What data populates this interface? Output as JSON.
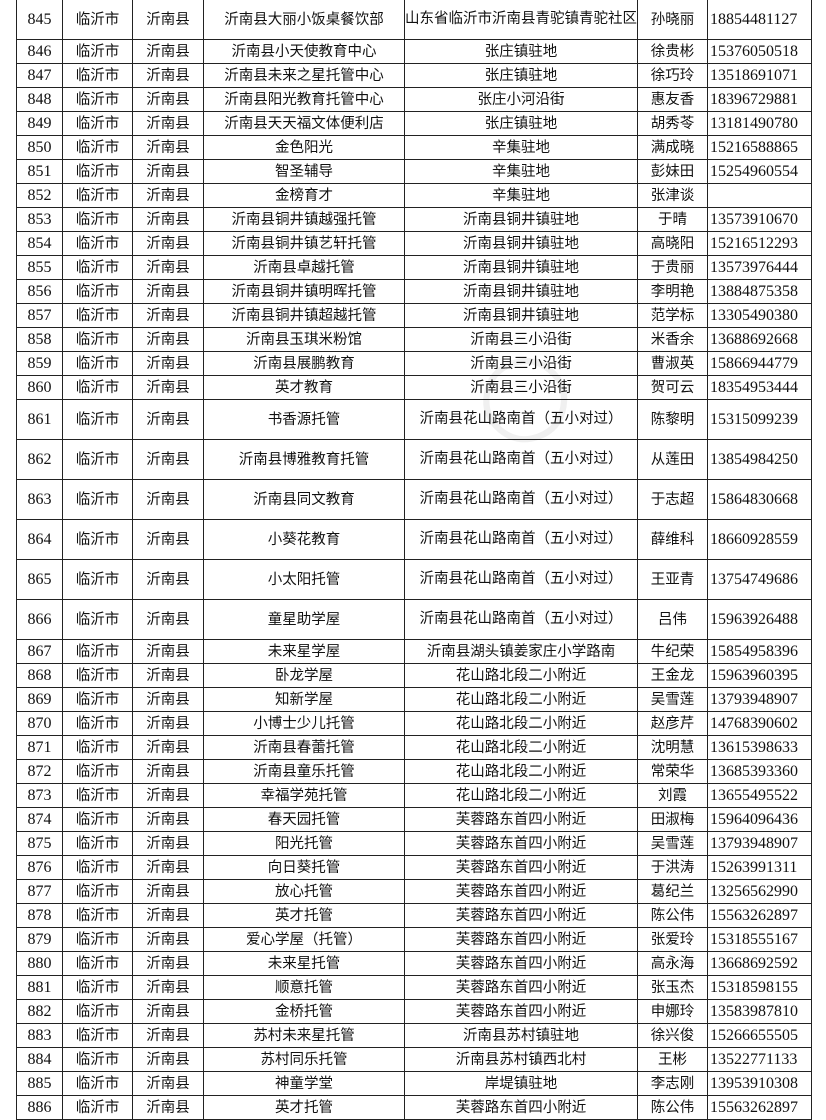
{
  "table": {
    "rows": [
      {
        "no": "845",
        "city": "临沂市",
        "county": "沂南县",
        "name": "沂南县大丽小饭桌餐饮部",
        "address": "山东省临沂市沂南县青驼镇青驼社区",
        "contact": "孙晓丽",
        "phone": "18854481127"
      },
      {
        "no": "846",
        "city": "临沂市",
        "county": "沂南县",
        "name": "沂南县小天使教育中心",
        "address": "张庄镇驻地",
        "contact": "徐贵彬",
        "phone": "15376050518"
      },
      {
        "no": "847",
        "city": "临沂市",
        "county": "沂南县",
        "name": "沂南县未来之星托管中心",
        "address": "张庄镇驻地",
        "contact": "徐巧玲",
        "phone": "13518691071"
      },
      {
        "no": "848",
        "city": "临沂市",
        "county": "沂南县",
        "name": "沂南县阳光教育托管中心",
        "address": "张庄小河沿街",
        "contact": "惠友香",
        "phone": "18396729881"
      },
      {
        "no": "849",
        "city": "临沂市",
        "county": "沂南县",
        "name": "沂南县天天福文体便利店",
        "address": "张庄镇驻地",
        "contact": "胡秀苓",
        "phone": "13181490780"
      },
      {
        "no": "850",
        "city": "临沂市",
        "county": "沂南县",
        "name": "金色阳光",
        "address": "辛集驻地",
        "contact": "满成晓",
        "phone": "15216588865"
      },
      {
        "no": "851",
        "city": "临沂市",
        "county": "沂南县",
        "name": "智圣辅导",
        "address": "辛集驻地",
        "contact": "彭妹田",
        "phone": "15254960554"
      },
      {
        "no": "852",
        "city": "临沂市",
        "county": "沂南县",
        "name": "金榜育才",
        "address": "辛集驻地",
        "contact": "张津谈",
        "phone": ""
      },
      {
        "no": "853",
        "city": "临沂市",
        "county": "沂南县",
        "name": "沂南县铜井镇越强托管",
        "address": "沂南县铜井镇驻地",
        "contact": "于晴",
        "phone": "13573910670"
      },
      {
        "no": "854",
        "city": "临沂市",
        "county": "沂南县",
        "name": "沂南县铜井镇艺轩托管",
        "address": "沂南县铜井镇驻地",
        "contact": "高晓阳",
        "phone": "15216512293"
      },
      {
        "no": "855",
        "city": "临沂市",
        "county": "沂南县",
        "name": "沂南县卓越托管",
        "address": "沂南县铜井镇驻地",
        "contact": "于贵丽",
        "phone": "13573976444"
      },
      {
        "no": "856",
        "city": "临沂市",
        "county": "沂南县",
        "name": "沂南县铜井镇明晖托管",
        "address": "沂南县铜井镇驻地",
        "contact": "李明艳",
        "phone": "13884875358"
      },
      {
        "no": "857",
        "city": "临沂市",
        "county": "沂南县",
        "name": "沂南县铜井镇超越托管",
        "address": "沂南县铜井镇驻地",
        "contact": "范学标",
        "phone": "13305490380"
      },
      {
        "no": "858",
        "city": "临沂市",
        "county": "沂南县",
        "name": "沂南县玉琪米粉馆",
        "address": "沂南县三小沿街",
        "contact": "米香余",
        "phone": "13688692668"
      },
      {
        "no": "859",
        "city": "临沂市",
        "county": "沂南县",
        "name": "沂南县展鹏教育",
        "address": "沂南县三小沿街",
        "contact": "曹淑英",
        "phone": "15866944779"
      },
      {
        "no": "860",
        "city": "临沂市",
        "county": "沂南县",
        "name": "英才教育",
        "address": "沂南县三小沿街",
        "contact": "贺可云",
        "phone": "18354953444"
      },
      {
        "no": "861",
        "city": "临沂市",
        "county": "沂南县",
        "name": "书香源托管",
        "address": "沂南县花山路南首（五小对过）",
        "contact": "陈黎明",
        "phone": "15315099239"
      },
      {
        "no": "862",
        "city": "临沂市",
        "county": "沂南县",
        "name": "沂南县博雅教育托管",
        "address": "沂南县花山路南首（五小对过）",
        "contact": "从莲田",
        "phone": "13854984250"
      },
      {
        "no": "863",
        "city": "临沂市",
        "county": "沂南县",
        "name": "沂南县同文教育",
        "address": "沂南县花山路南首（五小对过）",
        "contact": "于志超",
        "phone": "15864830668"
      },
      {
        "no": "864",
        "city": "临沂市",
        "county": "沂南县",
        "name": "小葵花教育",
        "address": "沂南县花山路南首（五小对过）",
        "contact": "薛维科",
        "phone": "18660928559"
      },
      {
        "no": "865",
        "city": "临沂市",
        "county": "沂南县",
        "name": "小太阳托管",
        "address": "沂南县花山路南首（五小对过）",
        "contact": "王亚青",
        "phone": "13754749686"
      },
      {
        "no": "866",
        "city": "临沂市",
        "county": "沂南县",
        "name": "童星助学屋",
        "address": "沂南县花山路南首（五小对过）",
        "contact": "吕伟",
        "phone": "15963926488"
      },
      {
        "no": "867",
        "city": "临沂市",
        "county": "沂南县",
        "name": "未来星学屋",
        "address": "沂南县湖头镇姜家庄小学路南",
        "contact": "牛纪荣",
        "phone": "15854958396"
      },
      {
        "no": "868",
        "city": "临沂市",
        "county": "沂南县",
        "name": "卧龙学屋",
        "address": "花山路北段二小附近",
        "contact": "王金龙",
        "phone": "15963960395"
      },
      {
        "no": "869",
        "city": "临沂市",
        "county": "沂南县",
        "name": "知新学屋",
        "address": "花山路北段二小附近",
        "contact": "吴雪莲",
        "phone": "13793948907"
      },
      {
        "no": "870",
        "city": "临沂市",
        "county": "沂南县",
        "name": "小博士少儿托管",
        "address": "花山路北段二小附近",
        "contact": "赵彦芹",
        "phone": "14768390602"
      },
      {
        "no": "871",
        "city": "临沂市",
        "county": "沂南县",
        "name": "沂南县春蕾托管",
        "address": "花山路北段二小附近",
        "contact": "沈明慧",
        "phone": "13615398633"
      },
      {
        "no": "872",
        "city": "临沂市",
        "county": "沂南县",
        "name": "沂南县童乐托管",
        "address": "花山路北段二小附近",
        "contact": "常荣华",
        "phone": "13685393360"
      },
      {
        "no": "873",
        "city": "临沂市",
        "county": "沂南县",
        "name": "幸福学苑托管",
        "address": "花山路北段二小附近",
        "contact": "刘霞",
        "phone": "13655495522"
      },
      {
        "no": "874",
        "city": "临沂市",
        "county": "沂南县",
        "name": "春天园托管",
        "address": "芙蓉路东首四小附近",
        "contact": "田淑梅",
        "phone": "15964096436"
      },
      {
        "no": "875",
        "city": "临沂市",
        "county": "沂南县",
        "name": "阳光托管",
        "address": "芙蓉路东首四小附近",
        "contact": "吴雪莲",
        "phone": "13793948907"
      },
      {
        "no": "876",
        "city": "临沂市",
        "county": "沂南县",
        "name": "向日葵托管",
        "address": "芙蓉路东首四小附近",
        "contact": "于洪涛",
        "phone": "15263991311"
      },
      {
        "no": "877",
        "city": "临沂市",
        "county": "沂南县",
        "name": "放心托管",
        "address": "芙蓉路东首四小附近",
        "contact": "葛纪兰",
        "phone": "13256562990"
      },
      {
        "no": "878",
        "city": "临沂市",
        "county": "沂南县",
        "name": "英才托管",
        "address": "芙蓉路东首四小附近",
        "contact": "陈公伟",
        "phone": "15563262897"
      },
      {
        "no": "879",
        "city": "临沂市",
        "county": "沂南县",
        "name": "爱心学屋（托管）",
        "address": "芙蓉路东首四小附近",
        "contact": "张爱玲",
        "phone": "15318555167"
      },
      {
        "no": "880",
        "city": "临沂市",
        "county": "沂南县",
        "name": "未来星托管",
        "address": "芙蓉路东首四小附近",
        "contact": "高永海",
        "phone": "13668692592"
      },
      {
        "no": "881",
        "city": "临沂市",
        "county": "沂南县",
        "name": "顺意托管",
        "address": "芙蓉路东首四小附近",
        "contact": "张玉杰",
        "phone": "15318598155"
      },
      {
        "no": "882",
        "city": "临沂市",
        "county": "沂南县",
        "name": "金桥托管",
        "address": "芙蓉路东首四小附近",
        "contact": "申娜玲",
        "phone": "13583987810"
      },
      {
        "no": "883",
        "city": "临沂市",
        "county": "沂南县",
        "name": "苏村未来星托管",
        "address": "沂南县苏村镇驻地",
        "contact": "徐兴俊",
        "phone": "15266655505"
      },
      {
        "no": "884",
        "city": "临沂市",
        "county": "沂南县",
        "name": "苏村同乐托管",
        "address": "沂南县苏村镇西北村",
        "contact": "王彬",
        "phone": "13522771133"
      },
      {
        "no": "885",
        "city": "临沂市",
        "county": "沂南县",
        "name": "神童学堂",
        "address": "岸堤镇驻地",
        "contact": "李志刚",
        "phone": "13953910308"
      },
      {
        "no": "886",
        "city": "临沂市",
        "county": "沂南县",
        "name": "英才托管",
        "address": "芙蓉路东首四小附近",
        "contact": "陈公伟",
        "phone": "15563262897"
      }
    ]
  }
}
